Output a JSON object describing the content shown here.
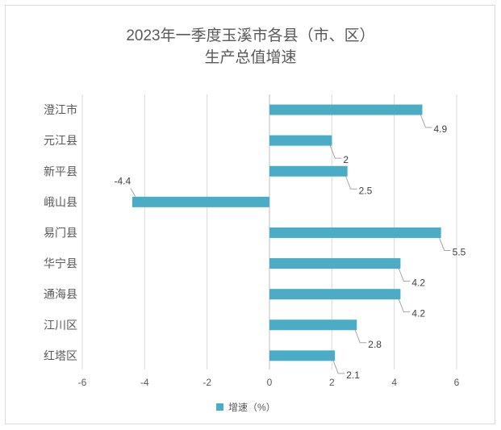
{
  "chart_data": {
    "type": "bar",
    "orientation": "horizontal",
    "title_line1": "2023年一季度玉溪市各县（市、区）",
    "title_line2": "生产总值增速",
    "categories": [
      "澄江市",
      "元江县",
      "新平县",
      "峨山县",
      "易门县",
      "华宁县",
      "通海县",
      "江川区",
      "红塔区"
    ],
    "series": [
      {
        "name": "增速（%）",
        "values": [
          4.9,
          2,
          2.5,
          -4.4,
          5.5,
          4.2,
          4.2,
          2.8,
          2.1
        ],
        "labels": [
          "4.9",
          "2",
          "2.5",
          "-4.4",
          "5.5",
          "4.2",
          "4.2",
          "2.8",
          "2.1"
        ]
      }
    ],
    "xlim": [
      -6,
      6
    ],
    "xticks": [
      "-6",
      "-4",
      "-2",
      "0",
      "2",
      "4",
      "6"
    ],
    "grid": true,
    "legend_position": "bottom",
    "bar_color": "#4bacc6"
  }
}
